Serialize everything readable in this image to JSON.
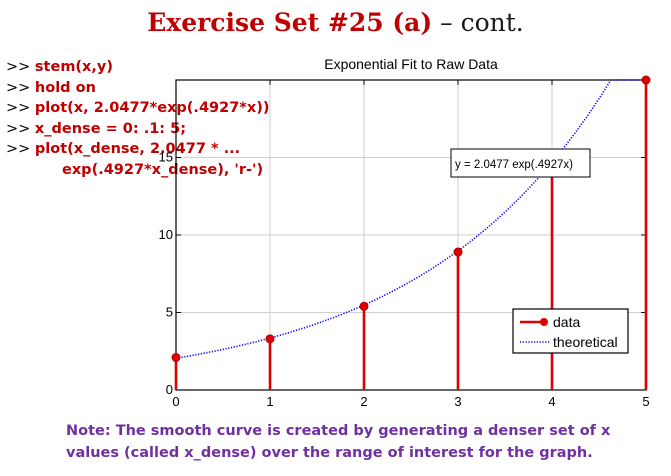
{
  "slide": {
    "title_main": "Exercise Set #25 (a)",
    "title_cont": " – cont."
  },
  "code_lines": [
    {
      "prompt": ">> ",
      "text": "stem(x,y)"
    },
    {
      "prompt": ">> ",
      "text": "hold on"
    },
    {
      "prompt": ">> ",
      "text": "plot(x, 2.0477*exp(.4927*x))"
    },
    {
      "prompt": ">> ",
      "text": "x_dense = 0: .1: 5;"
    },
    {
      "prompt": ">> ",
      "text": "plot(x_dense, 2.0477 * ..."
    },
    {
      "prompt": "",
      "text": "exp(.4927*x_dense), 'r-')"
    }
  ],
  "note": "Note: The smooth curve is created by generating a denser set of x values (called x_dense) over the range of interest for the graph.",
  "chart_data": {
    "type": "line",
    "title": "Exponential Fit to Raw Data",
    "xlabel": "",
    "ylabel": "",
    "xlim": [
      0,
      5
    ],
    "ylim": [
      0,
      20
    ],
    "x_ticks": [
      "0",
      "1",
      "2",
      "3",
      "4",
      "5"
    ],
    "y_ticks": [
      "0",
      "5",
      "10",
      "15"
    ],
    "annotation": "y = 2.0477 exp(.4927x)",
    "legend": {
      "position": "lower-right",
      "entries": [
        "data",
        "theoretical"
      ]
    },
    "grid": true,
    "stem_series": {
      "name": "data",
      "x": [
        0,
        1,
        2,
        3,
        4,
        5
      ],
      "y": [
        2.1,
        3.3,
        5.4,
        8.9,
        14.6,
        24.0
      ],
      "color": "#e00000"
    },
    "curve_series": {
      "name": "theoretical",
      "coefficient": 2.0477,
      "rate": 0.4927,
      "x_range": [
        0,
        5
      ],
      "color": "#0000ff"
    }
  }
}
